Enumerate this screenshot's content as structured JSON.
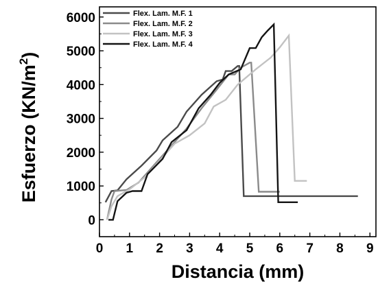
{
  "chart_data": {
    "type": "line",
    "xlabel": "Distancia (mm)",
    "ylabel": "Esfuerzo (KN/m",
    "ylabel_superscript": "2",
    "ylabel_suffix": ")",
    "xlim": [
      0,
      9.2
    ],
    "ylim": [
      -500,
      6300
    ],
    "x_ticks": [
      0,
      1,
      2,
      3,
      4,
      5,
      6,
      7,
      8,
      9
    ],
    "y_ticks": [
      0,
      1000,
      2000,
      3000,
      4000,
      5000,
      6000
    ],
    "legend_position": "top-left",
    "grid": false,
    "series": [
      {
        "name": "Flex. Lam. M.F. 1",
        "color": "#4a4a4a",
        "points": [
          [
            0.2,
            520
          ],
          [
            0.4,
            850
          ],
          [
            0.6,
            870
          ],
          [
            0.9,
            1200
          ],
          [
            1.4,
            1600
          ],
          [
            1.9,
            2050
          ],
          [
            2.1,
            2350
          ],
          [
            2.6,
            2750
          ],
          [
            2.9,
            3200
          ],
          [
            3.4,
            3700
          ],
          [
            3.9,
            4100
          ],
          [
            4.1,
            4150
          ],
          [
            4.2,
            4400
          ],
          [
            4.3,
            4400
          ],
          [
            4.4,
            4400
          ],
          [
            4.6,
            4550
          ],
          [
            4.65,
            4550
          ],
          [
            4.8,
            700
          ],
          [
            5.0,
            700
          ],
          [
            8.6,
            700
          ]
        ]
      },
      {
        "name": "Flex. Lam. M.F. 2",
        "color": "#8a8a8a",
        "points": [
          [
            0.25,
            0
          ],
          [
            0.4,
            600
          ],
          [
            0.5,
            850
          ],
          [
            0.9,
            880
          ],
          [
            1.3,
            1100
          ],
          [
            1.9,
            1700
          ],
          [
            2.3,
            2100
          ],
          [
            2.9,
            2700
          ],
          [
            3.4,
            3300
          ],
          [
            3.9,
            3850
          ],
          [
            4.3,
            4300
          ],
          [
            4.5,
            4300
          ],
          [
            4.7,
            4500
          ],
          [
            5.0,
            4650
          ],
          [
            5.05,
            4650
          ],
          [
            5.3,
            830
          ],
          [
            6.0,
            830
          ]
        ]
      },
      {
        "name": "Flex. Lam. M.F. 3",
        "color": "#c2c2c2",
        "points": [
          [
            0.25,
            0
          ],
          [
            0.4,
            400
          ],
          [
            0.6,
            700
          ],
          [
            1.0,
            900
          ],
          [
            1.5,
            1250
          ],
          [
            2.0,
            1750
          ],
          [
            2.5,
            2250
          ],
          [
            3.0,
            2500
          ],
          [
            3.5,
            2850
          ],
          [
            3.8,
            3350
          ],
          [
            4.2,
            3550
          ],
          [
            4.6,
            4000
          ],
          [
            5.2,
            4450
          ],
          [
            5.7,
            4800
          ],
          [
            6.0,
            5100
          ],
          [
            6.3,
            5450
          ],
          [
            6.5,
            1150
          ],
          [
            6.9,
            1150
          ]
        ]
      },
      {
        "name": "Flex. Lam. M.F. 4",
        "color": "#141414",
        "points": [
          [
            0.3,
            0
          ],
          [
            0.45,
            0
          ],
          [
            0.6,
            550
          ],
          [
            0.9,
            800
          ],
          [
            1.1,
            850
          ],
          [
            1.4,
            850
          ],
          [
            1.6,
            1350
          ],
          [
            2.1,
            1800
          ],
          [
            2.4,
            2300
          ],
          [
            2.9,
            2650
          ],
          [
            3.3,
            3300
          ],
          [
            3.7,
            3700
          ],
          [
            4.0,
            4050
          ],
          [
            4.3,
            4300
          ],
          [
            4.7,
            4450
          ],
          [
            5.0,
            5080
          ],
          [
            5.2,
            5080
          ],
          [
            5.4,
            5400
          ],
          [
            5.6,
            5600
          ],
          [
            5.8,
            5780
          ],
          [
            5.95,
            520
          ],
          [
            6.6,
            520
          ]
        ]
      }
    ]
  }
}
